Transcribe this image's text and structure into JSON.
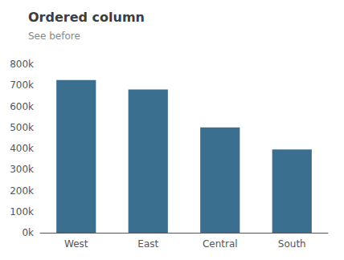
{
  "chart_data": {
    "type": "bar",
    "title": "Ordered column",
    "subtitle": "See before",
    "categories": [
      "West",
      "East",
      "Central",
      "South"
    ],
    "values": [
      725000,
      680000,
      500000,
      395000
    ],
    "color": "#3a6f8f",
    "ylim": [
      0,
      800000
    ],
    "yticks": [
      {
        "value": 0,
        "label": "0k"
      },
      {
        "value": 100000,
        "label": "100k"
      },
      {
        "value": 200000,
        "label": "200k"
      },
      {
        "value": 300000,
        "label": "300k"
      },
      {
        "value": 400000,
        "label": "400k"
      },
      {
        "value": 500000,
        "label": "500k"
      },
      {
        "value": 600000,
        "label": "600k"
      },
      {
        "value": 700000,
        "label": "700k"
      },
      {
        "value": 800000,
        "label": "800k"
      }
    ],
    "grid": false
  }
}
